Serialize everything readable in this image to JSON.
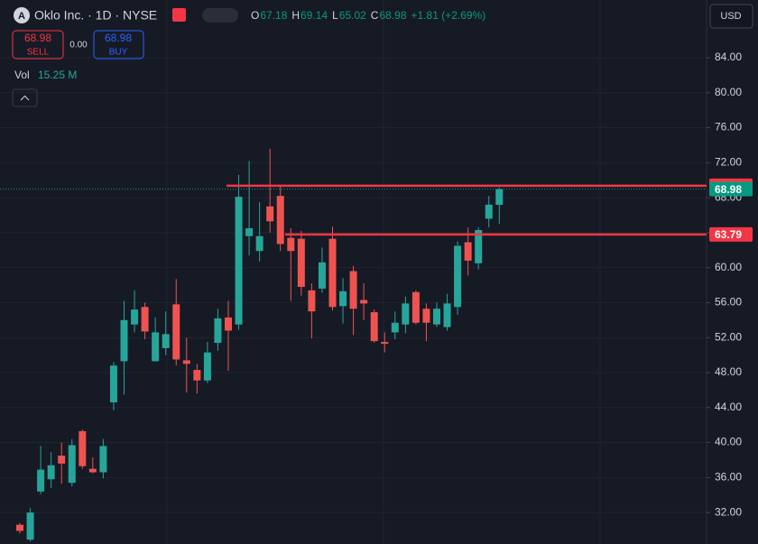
{
  "header": {
    "logo": "A",
    "symbol": "Oklo Inc. · 1D · NYSE",
    "ohlc": [
      {
        "label": "O",
        "value": "67.18"
      },
      {
        "label": "H",
        "value": "69.14"
      },
      {
        "label": "L",
        "value": "65.02"
      },
      {
        "label": "C",
        "value": "68.98"
      }
    ],
    "change": "+1.81 (+2.69%)",
    "sell": {
      "price": "68.98",
      "label": "SELL"
    },
    "spread": "0.00",
    "buy": {
      "price": "68.98",
      "label": "BUY"
    },
    "volume": {
      "label": "Vol",
      "value": "15.25 M"
    },
    "currency": "USD"
  },
  "chart_data": {
    "type": "candlestick",
    "categories": [
      null,
      null,
      null,
      null,
      null,
      null,
      null,
      null,
      null,
      null,
      null,
      null,
      null,
      null,
      null,
      null,
      null,
      null,
      null,
      null,
      null,
      null,
      null,
      null,
      null,
      null,
      null,
      null,
      null,
      null,
      null,
      null,
      null,
      null,
      null,
      null,
      null,
      null,
      null,
      null,
      null,
      null,
      null,
      null,
      null,
      null,
      null
    ],
    "open": [
      30.6,
      28.9,
      34.4,
      35.8,
      38.5,
      35.4,
      41.3,
      37.0,
      36.6,
      44.6,
      49.3,
      53.5,
      55.5,
      49.3,
      50.8,
      55.8,
      49.4,
      48.3,
      47.1,
      51.4,
      54.3,
      53.5,
      63.6,
      61.9,
      67.0,
      68.2,
      63.4,
      63.3,
      57.4,
      57.6,
      63.3,
      55.6,
      59.6,
      56.3,
      54.9,
      51.5,
      52.6,
      53.5,
      57.2,
      55.3,
      53.5,
      53.2,
      55.5,
      62.9,
      60.5,
      65.6,
      67.18
    ],
    "high": [
      30.8,
      32.5,
      39.6,
      38.9,
      40.0,
      40.4,
      41.5,
      38.3,
      40.4,
      49.2,
      56.2,
      57.4,
      56.0,
      54.3,
      55.0,
      58.7,
      52.0,
      49.0,
      51.5,
      55.3,
      56.2,
      70.6,
      72.2,
      67.5,
      73.6,
      69.3,
      64.5,
      64.2,
      58.2,
      62.3,
      64.7,
      58.8,
      60.2,
      58.2,
      55.2,
      52.6,
      55.0,
      56.7,
      57.4,
      55.9,
      56.0,
      57.0,
      63.0,
      64.6,
      64.6,
      68.2,
      69.14
    ],
    "low": [
      29.6,
      28.7,
      34.1,
      34.8,
      35.3,
      35.0,
      37.0,
      36.5,
      35.9,
      43.7,
      45.5,
      52.6,
      51.8,
      49.3,
      50.0,
      48.8,
      45.7,
      45.6,
      46.8,
      50.5,
      48.2,
      52.9,
      61.4,
      60.7,
      64.0,
      61.9,
      56.2,
      56.8,
      51.9,
      57.1,
      55.1,
      53.6,
      52.3,
      54.0,
      51.4,
      50.3,
      51.8,
      52.5,
      53.5,
      51.6,
      53.2,
      52.8,
      54.6,
      59.1,
      59.8,
      64.6,
      65.02
    ],
    "close": [
      29.9,
      32.0,
      36.9,
      37.4,
      37.6,
      39.7,
      37.3,
      36.6,
      39.6,
      48.8,
      54.0,
      55.2,
      52.7,
      52.6,
      52.4,
      49.5,
      49.0,
      47.1,
      50.3,
      54.2,
      52.8,
      68.1,
      64.5,
      63.6,
      65.3,
      62.7,
      61.9,
      57.8,
      55.0,
      60.6,
      55.5,
      57.3,
      55.3,
      55.9,
      51.6,
      51.3,
      53.7,
      55.9,
      53.7,
      53.7,
      55.3,
      55.9,
      62.5,
      60.8,
      64.3,
      67.2,
      68.98
    ],
    "up_color": "#26a69a",
    "down_color": "#ef5350",
    "ylim": [
      28.4,
      90.6
    ],
    "yticks": [
      {
        "value": 32,
        "label": "32.00"
      },
      {
        "value": 36,
        "label": "36.00"
      },
      {
        "value": 40,
        "label": "40.00"
      },
      {
        "value": 44,
        "label": "44.00"
      },
      {
        "value": 48,
        "label": "48.00"
      },
      {
        "value": 52,
        "label": "52.00"
      },
      {
        "value": 56,
        "label": "56.00"
      },
      {
        "value": 60,
        "label": "60.00"
      },
      {
        "value": 64,
        "label": "64.00"
      },
      {
        "value": 68,
        "label": "68.00"
      },
      {
        "value": 72,
        "label": "72.00"
      },
      {
        "value": 76,
        "label": "76.00"
      },
      {
        "value": 80,
        "label": "80.00"
      },
      {
        "value": 84,
        "label": "84.00"
      }
    ],
    "grid": true,
    "levels": [
      {
        "value": 69.36,
        "color": "#f23645"
      },
      {
        "value": 63.79,
        "color": "#f23645"
      }
    ],
    "last_price": 68.98,
    "last_price_color": "#089981"
  }
}
